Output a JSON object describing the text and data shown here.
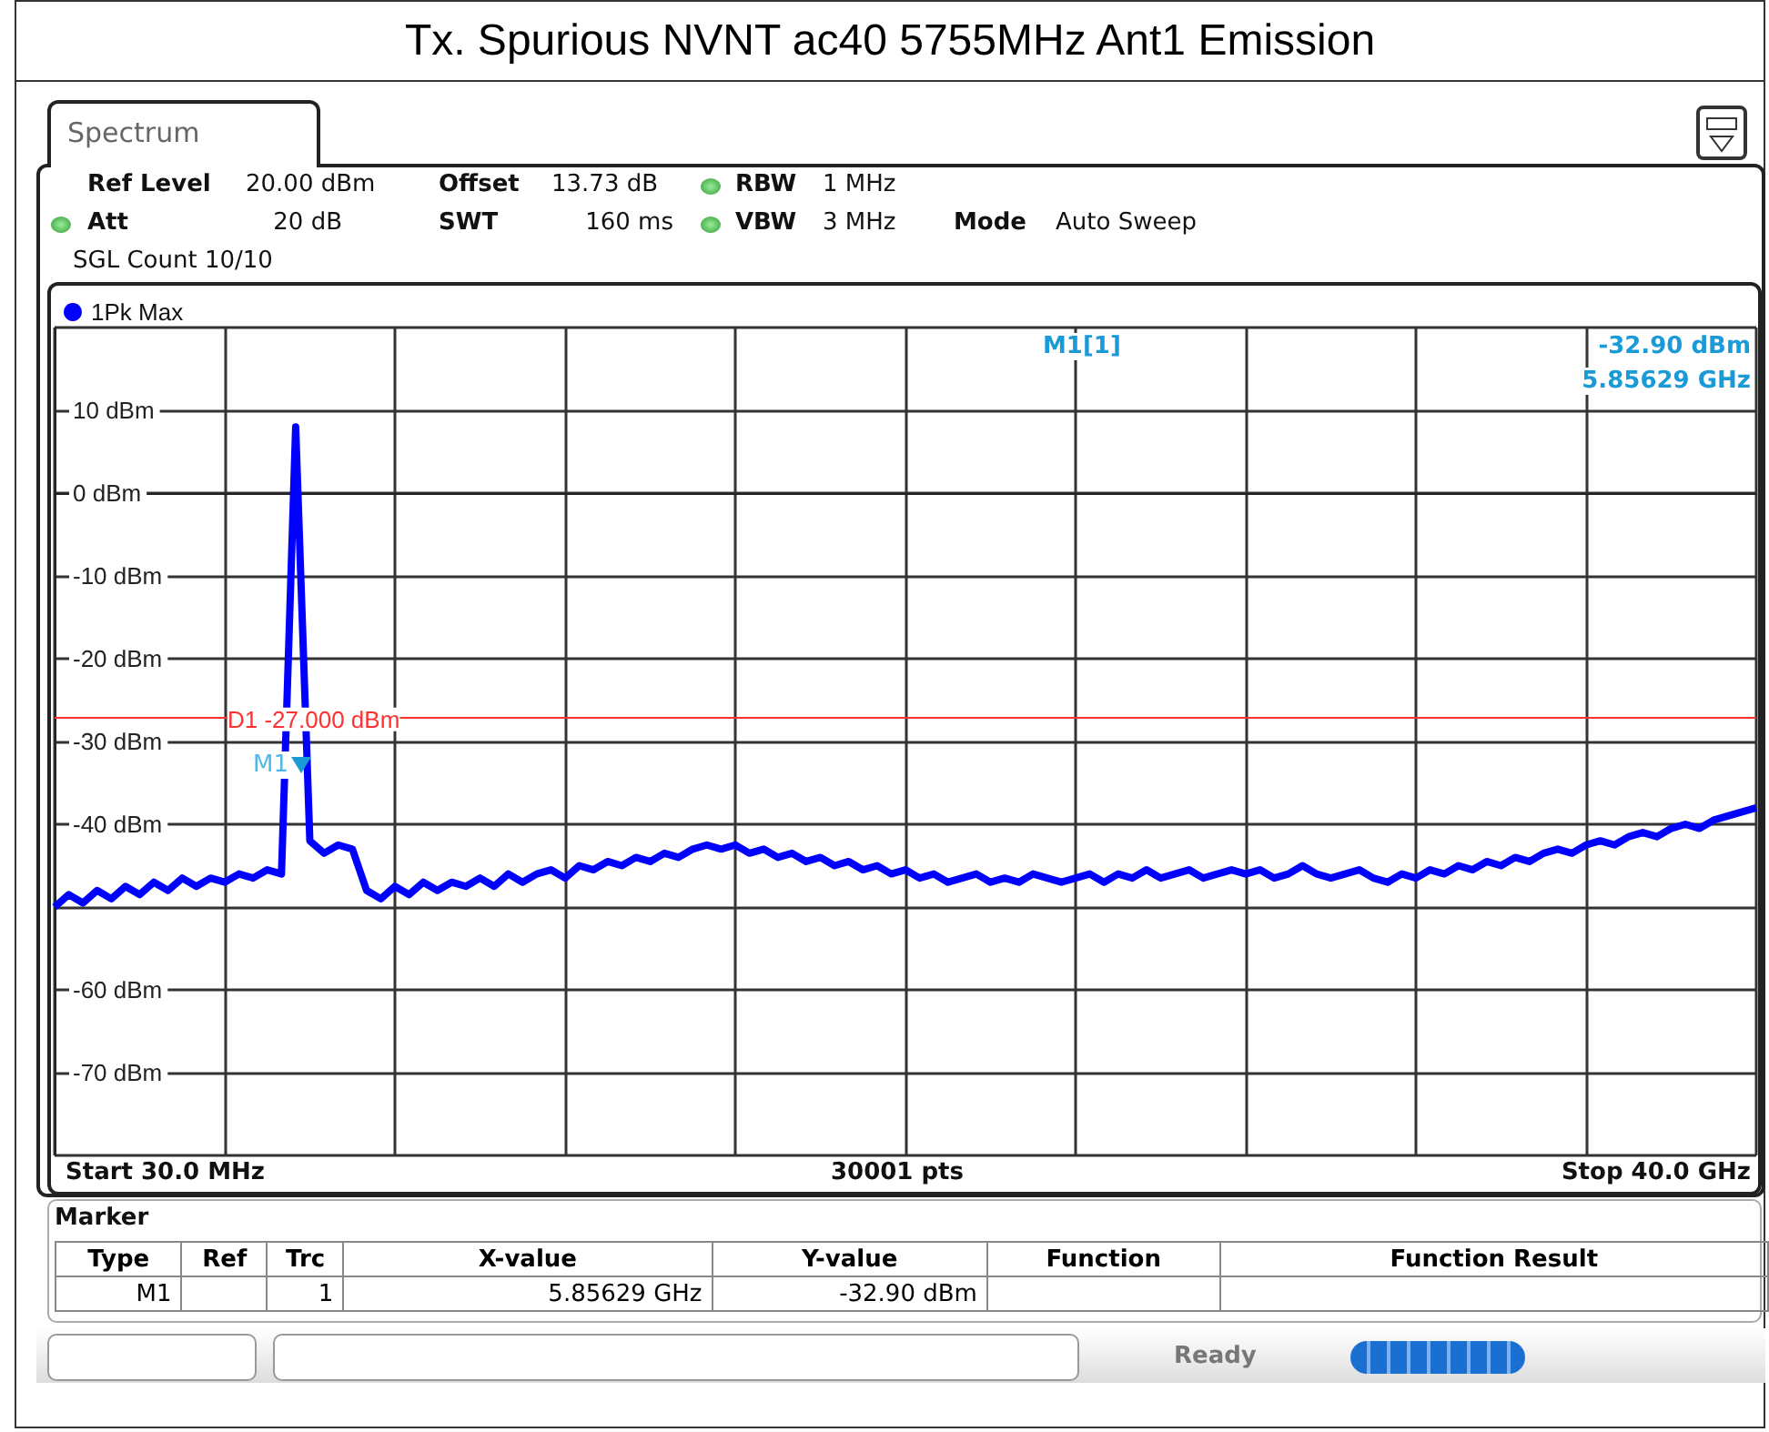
{
  "chart_data": {
    "type": "line",
    "title": "Tx. Spurious NVNT ac40 5755MHz Ant1 Emission",
    "categories": [
      null,
      null,
      null,
      null,
      null,
      null,
      null,
      null,
      null,
      null,
      null,
      null,
      null,
      null,
      null,
      null,
      null,
      null,
      null,
      null,
      null,
      null,
      null,
      null,
      null,
      null,
      null,
      null,
      null,
      null,
      null,
      null,
      null,
      null,
      null,
      null,
      null,
      null,
      null,
      null,
      null,
      null,
      null,
      null,
      null,
      null,
      null,
      null,
      null,
      null,
      null,
      null,
      null,
      null,
      null,
      null,
      null,
      null,
      null,
      null,
      null,
      null,
      null,
      null,
      null,
      null,
      null,
      null,
      null,
      null,
      null,
      null,
      null,
      null,
      null,
      null,
      null,
      null,
      null,
      null,
      null,
      null,
      null,
      null,
      null,
      null,
      null,
      null,
      null,
      null,
      null,
      null,
      null,
      null,
      null,
      null,
      null,
      null,
      null,
      null,
      null,
      null,
      null,
      null,
      null,
      null,
      null,
      null,
      null,
      null,
      null,
      null,
      null,
      null,
      null,
      null,
      null,
      null,
      null,
      null,
      null
    ],
    "series": [
      {
        "name": "1Pk Max",
        "color": "#0000ff",
        "values": [
          -50,
          -48.5,
          -49.5,
          -48,
          -49,
          -47.5,
          -48.5,
          -47,
          -48,
          -46.5,
          -47.5,
          -46.5,
          -47,
          -46,
          -46.5,
          -45.5,
          -46,
          8,
          -42,
          -43.5,
          -42.5,
          -43,
          -48,
          -49,
          -47.5,
          -48.5,
          -47,
          -48,
          -47,
          -47.5,
          -46.5,
          -47.5,
          -46,
          -47,
          -46,
          -45.5,
          -46.5,
          -45,
          -45.5,
          -44.5,
          -45,
          -44,
          -44.5,
          -43.5,
          -44,
          -43,
          -42.5,
          -43,
          -42.5,
          -43.5,
          -43,
          -44,
          -43.5,
          -44.5,
          -44,
          -45,
          -44.5,
          -45.5,
          -45,
          -46,
          -45.5,
          -46.5,
          -46,
          -47,
          -46.5,
          -46,
          -47,
          -46.5,
          -47,
          -46,
          -46.5,
          -47,
          -46.5,
          -46,
          -47,
          -46,
          -46.5,
          -45.5,
          -46.5,
          -46,
          -45.5,
          -46.5,
          -46,
          -45.5,
          -46,
          -45.5,
          -46.5,
          -46,
          -45,
          -46,
          -46.5,
          -46,
          -45.5,
          -46.5,
          -47,
          -46,
          -46.5,
          -45.5,
          -46,
          -45,
          -45.5,
          -44.5,
          -45,
          -44,
          -44.5,
          -43.5,
          -43,
          -43.5,
          -42.5,
          -42,
          -42.5,
          -41.5,
          -41,
          -41.5,
          -40.5,
          -40,
          -40.5,
          -39.5,
          -39,
          -38.5,
          -38
        ]
      }
    ],
    "ylim": [
      -80,
      20
    ],
    "yticks": [
      {
        "value": -80,
        "label": null
      },
      {
        "value": -70,
        "label": "-70 dBm"
      },
      {
        "value": -60,
        "label": "-60 dBm"
      },
      {
        "value": -50,
        "label": null
      },
      {
        "value": -40,
        "label": "-40 dBm"
      },
      {
        "value": -30,
        "label": "-30 dBm"
      },
      {
        "value": -20,
        "label": "-20 dBm"
      },
      {
        "value": -10,
        "label": "-10 dBm"
      },
      {
        "value": 0,
        "label": "0 dBm"
      },
      {
        "value": 10,
        "label": "10 dBm"
      },
      {
        "value": 20,
        "label": null
      }
    ],
    "tick_labels": "y",
    "grid": true,
    "legend": "top left",
    "ref_lines": [
      {
        "axis": "y",
        "value": -27,
        "label": "D1 -27.000 dBm",
        "color": "#ff3030"
      }
    ],
    "annotations": [
      "M1",
      "Spectrum",
      "Ref Level",
      "20.00 dBm",
      "Offset",
      "13.73 dB",
      "RBW",
      "1 MHz",
      "Att",
      "20 dB",
      "SWT",
      "160 ms",
      "VBW",
      "3 MHz",
      "Mode",
      "Auto Sweep",
      "SGL Count 10/10",
      "M1[1]",
      "-32.90 dBm",
      "5.85629 GHz",
      "Start 30.0 MHz",
      "30001 pts",
      "Stop 40.0 GHz",
      "Marker",
      "Type",
      "Ref",
      "Trc",
      "X-value",
      "Y-value",
      "Function",
      "Function Result",
      "M1",
      "1",
      "5.85629 GHz",
      "-32.90 dBm",
      "Ready"
    ]
  }
}
